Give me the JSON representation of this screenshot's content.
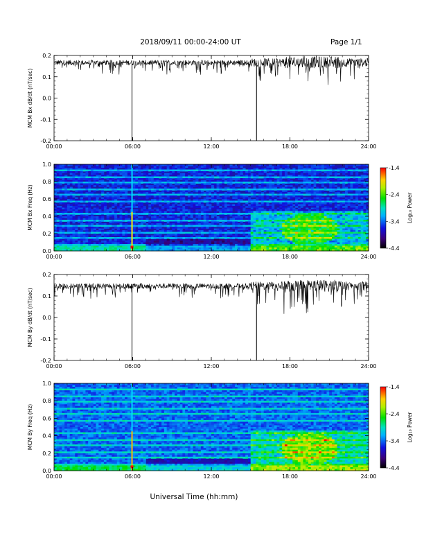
{
  "header": {
    "title": "2018/09/11  00:00-24:00 UT",
    "page": "Page 1/1"
  },
  "footer": {
    "xlabel": "Universal Time (hh:mm)"
  },
  "colorbar": {
    "label": "Log₁₀ Power",
    "ticks": [
      "-1.4",
      "-2.4",
      "-3.4",
      "-4.4"
    ]
  },
  "chart_data": [
    {
      "type": "line",
      "ylabel": "MCM Bx dB/dt (nT/sec)",
      "x_ticks": [
        "00:00",
        "06:00",
        "12:00",
        "18:00",
        "24:00"
      ],
      "y_ticks": [
        "0.2",
        "0.1",
        "0.0",
        "-0.1",
        "-0.2"
      ],
      "xlim_hours": [
        0,
        24
      ],
      "ylim": [
        -0.2,
        0.2
      ],
      "baseline": 0.165,
      "spikes_hours": [
        5.95,
        15.45
      ]
    },
    {
      "type": "heatmap",
      "ylabel": "MCM Bx Freq (Hz)",
      "x_ticks": [
        "00:00",
        "06:00",
        "12:00",
        "18:00",
        "24:00"
      ],
      "y_ticks": [
        "1.0",
        "0.8",
        "0.6",
        "0.4",
        "0.2",
        "0.0"
      ],
      "xlim_hours": [
        0,
        24
      ],
      "ylim": [
        0,
        1.0
      ],
      "clim": [
        -4.4,
        -1.4
      ]
    },
    {
      "type": "line",
      "ylabel": "MCM By dB/dt (nT/sec)",
      "x_ticks": [
        "00:00",
        "06:00",
        "12:00",
        "18:00",
        "24:00"
      ],
      "y_ticks": [
        "0.2",
        "0.1",
        "0.0",
        "-0.1",
        "-0.2"
      ],
      "xlim_hours": [
        0,
        24
      ],
      "ylim": [
        -0.2,
        0.2
      ],
      "baseline": 0.145,
      "spikes_hours": [
        5.95,
        15.45
      ]
    },
    {
      "type": "heatmap",
      "ylabel": "MCM By Freq (Hz)",
      "x_ticks": [
        "00:00",
        "06:00",
        "12:00",
        "18:00",
        "24:00"
      ],
      "y_ticks": [
        "1.0",
        "0.8",
        "0.6",
        "0.4",
        "0.2",
        "0.0"
      ],
      "xlim_hours": [
        0,
        24
      ],
      "ylim": [
        0,
        1.0
      ],
      "clim": [
        -4.4,
        -1.4
      ]
    }
  ]
}
